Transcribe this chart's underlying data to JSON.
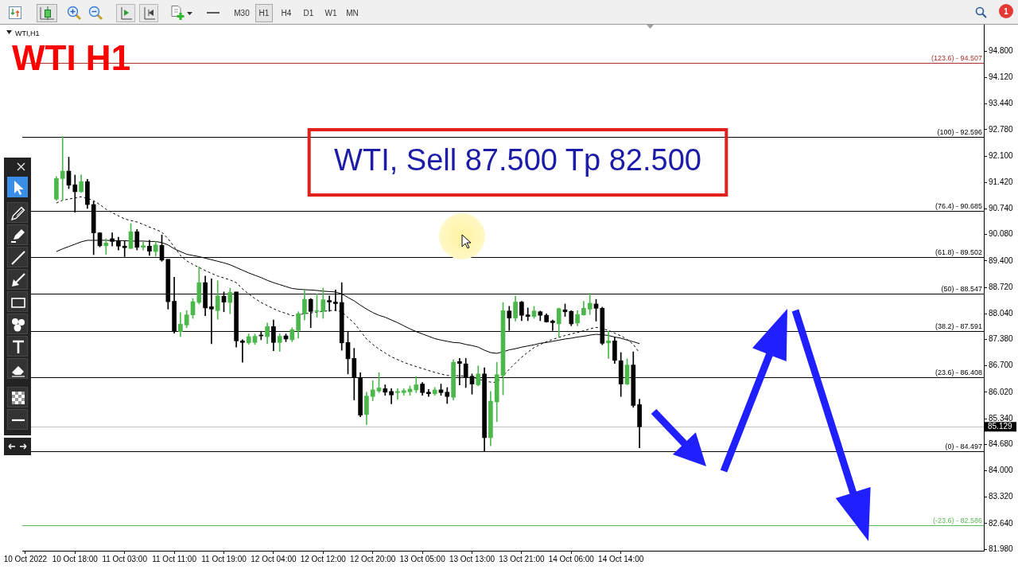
{
  "chart_data": {
    "type": "candlestick",
    "title": "WTI H1",
    "subtitle": "WTI,H1",
    "categories": [
      "10 Oct 2022",
      null,
      null,
      null,
      null,
      null,
      null,
      null,
      "10 Oct 18:00",
      null,
      null,
      null,
      null,
      null,
      null,
      null,
      "11 Oct 03:00",
      null,
      null,
      null,
      null,
      null,
      null,
      null,
      "11 Oct 11:00",
      null,
      null,
      null,
      null,
      null,
      null,
      null,
      "11 Oct 19:00",
      null,
      null,
      null,
      null,
      null,
      null,
      null,
      "12 Oct 04:00",
      null,
      null,
      null,
      null,
      null,
      null,
      null,
      "12 Oct 12:00",
      null,
      null,
      null,
      null,
      null,
      null,
      null,
      "12 Oct 20:00",
      null,
      null,
      null,
      null,
      null,
      null,
      null,
      "13 Oct 05:00",
      null,
      null,
      null,
      null,
      null,
      null,
      null,
      "13 Oct 13:00",
      null,
      null,
      null,
      null,
      null,
      null,
      null,
      "13 Oct 21:00",
      null,
      null,
      null,
      null,
      null,
      null,
      null,
      "14 Oct 06:00",
      null,
      null,
      null,
      null,
      null,
      null,
      null,
      "14 Oct 14:00",
      null,
      null,
      null,
      null,
      null,
      null,
      null,
      null,
      null,
      null,
      null,
      null,
      null,
      null,
      null,
      null,
      null,
      null,
      null,
      null,
      null,
      null,
      null,
      null,
      null,
      null,
      null,
      null,
      null,
      null,
      null,
      null,
      null,
      null,
      null,
      null,
      null,
      null,
      null,
      null,
      null,
      null,
      null,
      null,
      null,
      null,
      null,
      null,
      null,
      null,
      null,
      null,
      null,
      null,
      null,
      null,
      null,
      null
    ],
    "ohlc": [
      null,
      null,
      null,
      null,
      null,
      [
        90.99,
        91.57,
        90.96,
        91.52
      ],
      [
        91.52,
        92.6,
        90.96,
        91.71
      ],
      [
        91.71,
        92.07,
        91.26,
        91.35
      ],
      [
        91.36,
        91.61,
        90.65,
        91.18
      ],
      [
        91.18,
        91.61,
        91.16,
        91.44
      ],
      [
        91.44,
        91.5,
        90.75,
        90.85
      ],
      [
        90.85,
        90.93,
        89.56,
        90.12
      ],
      [
        90.12,
        90.13,
        89.76,
        89.79
      ],
      [
        89.79,
        89.97,
        89.57,
        89.86
      ],
      [
        89.97,
        90.12,
        89.78,
        89.9
      ],
      [
        89.91,
        90.01,
        89.68,
        89.78
      ],
      [
        89.78,
        89.91,
        89.51,
        89.74
      ],
      [
        89.72,
        90.36,
        89.72,
        90.15
      ],
      [
        90.15,
        90.21,
        89.68,
        89.75
      ],
      [
        89.75,
        89.88,
        89.68,
        89.79
      ],
      [
        89.78,
        89.93,
        89.54,
        89.65
      ],
      [
        89.64,
        89.9,
        89.52,
        89.81
      ],
      [
        89.8,
        90.07,
        89.39,
        89.42
      ],
      [
        89.44,
        89.44,
        88.16,
        88.35
      ],
      [
        88.36,
        88.98,
        87.54,
        87.58
      ],
      [
        87.58,
        88.07,
        87.45,
        87.77
      ],
      [
        87.75,
        88.12,
        87.68,
        88.01
      ],
      [
        88.01,
        88.43,
        87.92,
        88.35
      ],
      [
        88.33,
        89.25,
        88.29,
        88.84
      ],
      [
        88.84,
        89.01,
        87.99,
        88.19
      ],
      [
        88.22,
        88.94,
        87.27,
        88.16
      ],
      [
        88.12,
        88.89,
        87.9,
        88.5
      ],
      [
        88.49,
        88.6,
        88.09,
        88.34
      ],
      [
        88.33,
        88.7,
        88.04,
        88.59
      ],
      [
        88.6,
        88.6,
        87.18,
        87.34
      ],
      [
        87.34,
        87.37,
        86.79,
        87.3
      ],
      [
        87.29,
        87.52,
        87.25,
        87.45
      ],
      [
        87.3,
        87.52,
        87.25,
        87.46
      ],
      [
        87.49,
        87.59,
        87.37,
        87.47
      ],
      [
        87.45,
        87.8,
        87.27,
        87.71
      ],
      [
        87.71,
        87.88,
        87.09,
        87.3
      ],
      [
        87.3,
        87.52,
        87.07,
        87.46
      ],
      [
        87.47,
        87.52,
        87.32,
        87.39
      ],
      [
        87.37,
        87.68,
        87.32,
        87.63
      ],
      [
        87.61,
        88.09,
        87.41,
        88.04
      ],
      [
        88.04,
        88.64,
        87.88,
        88.41
      ],
      [
        88.41,
        88.43,
        87.68,
        88.1
      ],
      [
        88.1,
        88.55,
        87.95,
        88.12
      ],
      [
        88.1,
        88.7,
        87.92,
        88.4
      ],
      [
        88.38,
        88.5,
        88.1,
        88.34
      ],
      [
        88.34,
        88.65,
        88.12,
        88.3
      ],
      [
        88.33,
        88.84,
        87.1,
        87.29
      ],
      [
        87.3,
        87.59,
        86.49,
        86.88
      ],
      [
        86.89,
        87.15,
        85.82,
        86.4
      ],
      [
        86.4,
        86.52,
        85.39,
        85.43
      ],
      [
        85.45,
        86.02,
        85.19,
        85.92
      ],
      [
        85.91,
        86.32,
        85.8,
        86.08
      ],
      [
        86.05,
        86.52,
        86.01,
        86.13
      ],
      [
        86.11,
        86.21,
        85.94,
        86.02
      ],
      [
        86.04,
        86.11,
        85.72,
        85.95
      ],
      [
        86.01,
        86.11,
        85.84,
        86.04
      ],
      [
        86.01,
        86.11,
        85.94,
        86.06
      ],
      [
        86.03,
        86.18,
        85.94,
        86.1
      ],
      [
        86.08,
        86.42,
        86.01,
        86.21
      ],
      [
        86.23,
        86.27,
        85.94,
        86.01
      ],
      [
        86.02,
        86.09,
        85.91,
        85.98
      ],
      [
        85.98,
        86.14,
        85.94,
        86.08
      ],
      [
        86.08,
        86.23,
        85.94,
        86.01
      ],
      [
        86.02,
        86.14,
        85.73,
        85.91
      ],
      [
        85.89,
        86.86,
        85.82,
        86.79
      ],
      [
        86.81,
        86.89,
        86.21,
        86.76
      ],
      [
        86.75,
        86.89,
        86.14,
        86.4
      ],
      [
        86.43,
        86.49,
        85.97,
        86.23
      ],
      [
        86.21,
        86.7,
        86.18,
        86.49
      ],
      [
        86.49,
        86.65,
        84.5,
        84.85
      ],
      [
        84.85,
        86.04,
        84.64,
        85.79
      ],
      [
        85.77,
        86.79,
        85.26,
        86.47
      ],
      [
        86.45,
        88.33,
        85.95,
        88.12
      ],
      [
        88.11,
        88.23,
        87.61,
        87.93
      ],
      [
        87.93,
        88.5,
        87.85,
        88.34
      ],
      [
        88.34,
        88.36,
        87.86,
        88.0
      ],
      [
        88.01,
        88.19,
        87.86,
        87.97
      ],
      [
        87.97,
        88.23,
        87.92,
        88.11
      ],
      [
        88.09,
        88.11,
        87.86,
        88.0
      ],
      [
        88.0,
        88.04,
        87.82,
        87.83
      ],
      [
        87.85,
        87.88,
        87.61,
        87.81
      ],
      [
        87.78,
        88.19,
        87.44,
        88.17
      ],
      [
        88.14,
        88.29,
        87.97,
        88.09
      ],
      [
        88.1,
        88.12,
        87.73,
        87.78
      ],
      [
        87.8,
        88.12,
        87.73,
        88.02
      ],
      [
        88.01,
        88.36,
        88.0,
        88.18
      ],
      [
        88.16,
        88.57,
        88.02,
        88.31
      ],
      [
        88.29,
        88.41,
        87.85,
        88.18
      ],
      [
        88.18,
        88.21,
        87.24,
        87.28
      ],
      [
        87.29,
        87.59,
        86.89,
        87.34
      ],
      [
        87.34,
        87.44,
        86.76,
        86.84
      ],
      [
        86.83,
        87.04,
        85.91,
        86.23
      ],
      [
        86.23,
        86.88,
        86.21,
        86.72
      ],
      [
        86.72,
        87.06,
        85.63,
        85.68
      ],
      [
        85.7,
        85.84,
        84.59,
        85.129
      ],
      null,
      null,
      null,
      null,
      null,
      null,
      null,
      null,
      null,
      null,
      null,
      null,
      null,
      null,
      null,
      null,
      null,
      null,
      null,
      null,
      null,
      null,
      null,
      null,
      null,
      null,
      null,
      null,
      null,
      null,
      null,
      null,
      null,
      null,
      null,
      null,
      null,
      null,
      null,
      null,
      null,
      null,
      null,
      null,
      null,
      null,
      null,
      null,
      null,
      null,
      null,
      null,
      null,
      null,
      null
    ],
    "colors": [
      null,
      null,
      null,
      null,
      null,
      "#4cb84c",
      "#4cb84c",
      "#000000",
      "#000000",
      "#4cb84c",
      "#000000",
      "#000000",
      "#000000",
      "#4cb84c",
      "#000000",
      "#000000",
      "#000000",
      "#4cb84c",
      "#000000",
      "#4cb84c",
      "#000000",
      "#4cb84c",
      "#000000",
      "#000000",
      "#000000",
      "#4cb84c",
      "#4cb84c",
      "#4cb84c",
      "#4cb84c",
      "#000000",
      "#000000",
      "#4cb84c",
      "#000000",
      "#4cb84c",
      "#000000",
      "#000000",
      "#4cb84c",
      "#4cb84c",
      "#000000",
      "#4cb84c",
      "#000000",
      "#4cb84c",
      "#000000",
      "#4cb84c",
      "#4cb84c",
      "#4cb84c",
      "#000000",
      "#4cb84c",
      "#4cb84c",
      "#000000",
      "#000000",
      "#000000",
      "#000000",
      "#000000",
      "#000000",
      "#4cb84c",
      "#4cb84c",
      "#4cb84c",
      "#000000",
      "#000000",
      "#4cb84c",
      "#4cb84c",
      "#4cb84c",
      "#4cb84c",
      "#000000",
      "#000000",
      "#4cb84c",
      "#000000",
      "#000000",
      "#4cb84c",
      "#000000",
      "#000000",
      "#000000",
      "#4cb84c",
      "#000000",
      "#4cb84c",
      "#4cb84c",
      "#4cb84c",
      "#000000",
      "#4cb84c",
      "#000000",
      "#000000",
      "#4cb84c",
      "#000000",
      "#000000",
      "#000000",
      "#4cb84c",
      "#000000",
      "#000000",
      "#4cb84c",
      "#4cb84c",
      "#4cb84c",
      "#000000",
      "#000000",
      "#4cb84c",
      "#000000",
      "#000000",
      "#4cb84c",
      "#000000",
      "#000000",
      null,
      null,
      null,
      null,
      null,
      null,
      null,
      null,
      null,
      null,
      null,
      null,
      null,
      null,
      null,
      null,
      null,
      null,
      null,
      null,
      null,
      null,
      null,
      null,
      null,
      null,
      null,
      null,
      null,
      null,
      null,
      null,
      null,
      null,
      null,
      null,
      null,
      null,
      null,
      null,
      null,
      null,
      null,
      null,
      null,
      null,
      null,
      null,
      null,
      null,
      null,
      null,
      null,
      null,
      null
    ],
    "series": [
      {
        "type": "line",
        "color": "#000000",
        "line_style": "dashed",
        "values": [
          null,
          null,
          null,
          null,
          null,
          90.89,
          90.96,
          90.99,
          91.02,
          91.05,
          91.01,
          90.95,
          90.85,
          90.73,
          90.64,
          90.56,
          90.48,
          90.44,
          90.4,
          90.34,
          90.27,
          90.21,
          90.14,
          89.97,
          89.76,
          89.54,
          89.4,
          89.31,
          89.23,
          89.15,
          89.08,
          89.01,
          88.96,
          88.91,
          88.84,
          88.68,
          88.55,
          88.43,
          88.33,
          88.25,
          88.17,
          88.1,
          88.05,
          87.99,
          88.01,
          88.04,
          88.06,
          88.08,
          88.1,
          88.12,
          88.13,
          88.09,
          87.94,
          87.8,
          87.6,
          87.39,
          87.25,
          87.13,
          87.03,
          86.93,
          86.86,
          86.79,
          86.73,
          86.68,
          86.63,
          86.58,
          86.53,
          86.49,
          86.45,
          86.45,
          86.44,
          86.43,
          86.41,
          86.36,
          86.31,
          86.28,
          86.27,
          86.44,
          86.61,
          86.77,
          86.92,
          87.05,
          87.17,
          87.25,
          87.32,
          87.38,
          87.43,
          87.48,
          87.52,
          87.56,
          87.6,
          87.65,
          87.69,
          87.66,
          87.61,
          87.54,
          87.47,
          87.38,
          87.25,
          87.03,
          null,
          null,
          null,
          null,
          null,
          null,
          null,
          null,
          null,
          null,
          null,
          null,
          null,
          null,
          null,
          null,
          null,
          null,
          null,
          null,
          null,
          null,
          null,
          null,
          null,
          null,
          null,
          null,
          null,
          null,
          null,
          null,
          null,
          null,
          null,
          null,
          null,
          null,
          null,
          null,
          null,
          null,
          null,
          null,
          null,
          null,
          null,
          null,
          null,
          null,
          null,
          null,
          null,
          null,
          null
        ]
      },
      {
        "type": "line",
        "color": "#000000",
        "line_style": "solid",
        "values": [
          null,
          null,
          null,
          null,
          null,
          89.64,
          89.71,
          89.77,
          89.83,
          89.89,
          89.93,
          89.93,
          89.93,
          89.93,
          89.92,
          89.92,
          89.92,
          89.91,
          89.91,
          89.91,
          89.9,
          89.9,
          89.87,
          89.81,
          89.71,
          89.64,
          89.57,
          89.54,
          89.51,
          89.47,
          89.43,
          89.39,
          89.35,
          89.3,
          89.23,
          89.16,
          89.09,
          89.03,
          88.97,
          88.9,
          88.84,
          88.79,
          88.74,
          88.69,
          88.67,
          88.66,
          88.65,
          88.64,
          88.62,
          88.61,
          88.6,
          88.55,
          88.46,
          88.37,
          88.26,
          88.16,
          88.07,
          88.0,
          87.95,
          87.88,
          87.81,
          87.73,
          87.65,
          87.58,
          87.52,
          87.46,
          87.4,
          87.36,
          87.33,
          87.3,
          87.29,
          87.25,
          87.22,
          87.18,
          87.1,
          87.04,
          87.02,
          87.06,
          87.11,
          87.14,
          87.18,
          87.21,
          87.24,
          87.28,
          87.3,
          87.33,
          87.36,
          87.39,
          87.41,
          87.44,
          87.46,
          87.49,
          87.51,
          87.5,
          87.48,
          87.44,
          87.41,
          87.36,
          87.32,
          87.27,
          null,
          null,
          null,
          null,
          null,
          null,
          null,
          null,
          null,
          null,
          null,
          null,
          null,
          null,
          null,
          null,
          null,
          null,
          null,
          null,
          null,
          null,
          null,
          null,
          null,
          null,
          null,
          null,
          null,
          null,
          null,
          null,
          null,
          null,
          null,
          null,
          null,
          null,
          null,
          null,
          null,
          null,
          null,
          null,
          null,
          null,
          null,
          null,
          null,
          null,
          null,
          null,
          null,
          null,
          null
        ]
      }
    ],
    "ylim": [
      81.94,
      95.48
    ],
    "yticks": [
      {
        "value": 81.98,
        "label": "81.980"
      },
      {
        "value": 82.64,
        "label": "82.640"
      },
      {
        "value": 83.32,
        "label": "83.320"
      },
      {
        "value": 84.0,
        "label": "84.000"
      },
      {
        "value": 84.68,
        "label": "84.680"
      },
      {
        "value": 85.34,
        "label": "85.340"
      },
      {
        "value": 86.02,
        "label": "86.020"
      },
      {
        "value": 86.7,
        "label": "86.700"
      },
      {
        "value": 87.38,
        "label": "87.380"
      },
      {
        "value": 88.04,
        "label": "88.040"
      },
      {
        "value": 88.72,
        "label": "88.720"
      },
      {
        "value": 89.4,
        "label": "89.400"
      },
      {
        "value": 90.08,
        "label": "90.080"
      },
      {
        "value": 90.74,
        "label": "90.740"
      },
      {
        "value": 91.42,
        "label": "91.420"
      },
      {
        "value": 92.1,
        "label": "92.100"
      },
      {
        "value": 92.78,
        "label": "92.780"
      },
      {
        "value": 93.44,
        "label": "93.440"
      },
      {
        "value": 94.12,
        "label": "94.120"
      },
      {
        "value": 94.8,
        "label": "94.800"
      }
    ],
    "ref_lines": [
      {
        "axis": "y",
        "value": 94.507,
        "color": "#b03030"
      },
      {
        "axis": "y",
        "value": 92.596,
        "color": "#000000"
      },
      {
        "axis": "y",
        "value": 90.685,
        "color": "#000000"
      },
      {
        "axis": "y",
        "value": 89.502,
        "color": "#000000"
      },
      {
        "axis": "y",
        "value": 88.547,
        "color": "#000000"
      },
      {
        "axis": "y",
        "value": 87.591,
        "color": "#000000"
      },
      {
        "axis": "y",
        "value": 86.408,
        "color": "#000000"
      },
      {
        "axis": "y",
        "value": 84.497,
        "color": "#000000"
      },
      {
        "axis": "y",
        "value": 82.586,
        "color": "#5cb85c"
      },
      {
        "axis": "y",
        "value": 85.129,
        "label": "85.129",
        "color": "#c0c0c0"
      }
    ],
    "annotations": [
      "WTI, Sell 87.500 Tp 82.500",
      {
        "text": "(123.6) - 94.507",
        "y": 94.507
      },
      {
        "text": "(100) - 92.596",
        "y": 92.596
      },
      {
        "text": "(76.4) - 90.685",
        "y": 90.685
      },
      {
        "text": "(61.8) - 89.502",
        "y": 89.502
      },
      {
        "text": "(50) - 88.547",
        "y": 88.547
      },
      {
        "text": "(38.2) - 87.591",
        "y": 87.591
      },
      {
        "text": "(23.6) - 86.408",
        "y": 86.408
      },
      {
        "text": "(0) - 84.497",
        "y": 84.497
      },
      {
        "text": "(-23.6) - 82.586",
        "y": 82.586
      },
      "M30",
      "H1",
      "H4",
      "D1",
      "W1",
      "MN",
      "1"
    ]
  }
}
